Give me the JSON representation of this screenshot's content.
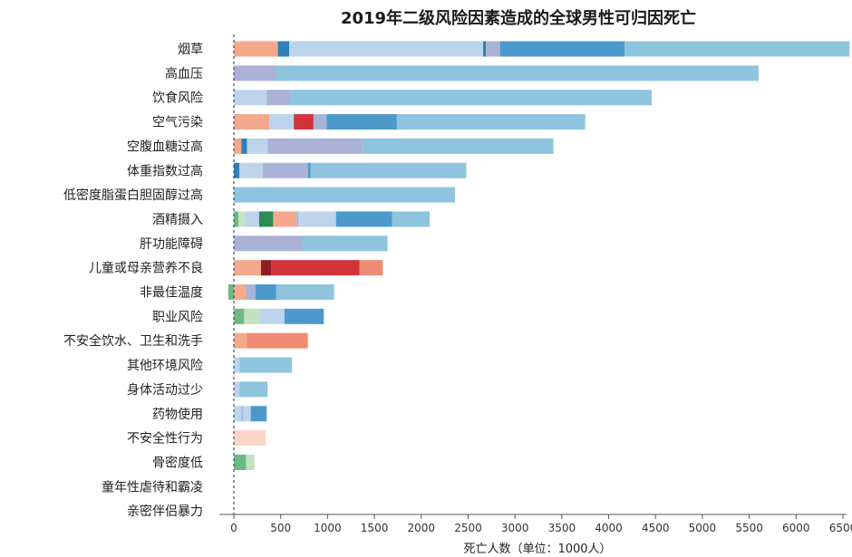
{
  "chart_data": {
    "type": "bar",
    "orientation": "horizontal",
    "stacked": true,
    "title": "2019年二级风险因素造成的全球男性可归因死亡",
    "xlabel": "死亡人数（单位：1000人）",
    "ylabel": "",
    "xlim": [
      0,
      6500
    ],
    "xticks": [
      0,
      500,
      1000,
      1500,
      2000,
      2500,
      3000,
      3500,
      4000,
      4500,
      5000,
      5500,
      6000,
      6500
    ],
    "grid": false,
    "legend": "none",
    "categories": [
      "烟草",
      "高血压",
      "饮食风险",
      "空气污染",
      "空腹血糖过高",
      "体重指数过高",
      "低密度脂蛋白胆固醇过高",
      "酒精摄入",
      "肝功能障碍",
      "儿童或母亲营养不良",
      "非最佳温度",
      "职业风险",
      "不安全饮水、卫生和洗手",
      "其他环境风险",
      "身体活动过少",
      "药物使用",
      "不安全性行为",
      "骨密度低",
      "童年性虐待和霸凌",
      "亲密伴侣暴力"
    ],
    "bars": [
      [
        {
          "v": 470,
          "c": "#f5a98c"
        },
        {
          "v": 120,
          "c": "#2f7fba"
        },
        {
          "v": 2070,
          "c": "#bcd5ec"
        },
        {
          "v": 30,
          "c": "#2f7fba"
        },
        {
          "v": 150,
          "c": "#aab2d8"
        },
        {
          "v": 1330,
          "c": "#4b9acb"
        },
        {
          "v": 2400,
          "c": "#8ec4de"
        }
      ],
      [
        {
          "v": 450,
          "c": "#aab2d8"
        },
        {
          "v": 5150,
          "c": "#8ec4de"
        }
      ],
      [
        {
          "v": 350,
          "c": "#bcd5ec"
        },
        {
          "v": 250,
          "c": "#aab2d8"
        },
        {
          "v": 3860,
          "c": "#8ec4de"
        }
      ],
      [
        {
          "v": 380,
          "c": "#f5a98c"
        },
        {
          "v": 260,
          "c": "#bcd5ec"
        },
        {
          "v": 210,
          "c": "#d1333b"
        },
        {
          "v": 140,
          "c": "#aab2d8"
        },
        {
          "v": 750,
          "c": "#4b9acb"
        },
        {
          "v": 2010,
          "c": "#8ec4de"
        }
      ],
      [
        {
          "v": 80,
          "c": "#f5a98c"
        },
        {
          "v": 60,
          "c": "#2f7fba"
        },
        {
          "v": 220,
          "c": "#bcd5ec"
        },
        {
          "v": 1010,
          "c": "#aab2d8"
        },
        {
          "v": 2040,
          "c": "#8ec4de"
        }
      ],
      [
        {
          "v": 60,
          "c": "#2f7fba"
        },
        {
          "v": 250,
          "c": "#bcd5ec"
        },
        {
          "v": 480,
          "c": "#aab2d8"
        },
        {
          "v": 30,
          "c": "#4b9acb"
        },
        {
          "v": 1660,
          "c": "#8ec4de"
        }
      ],
      [
        {
          "v": 2360,
          "c": "#8ec4de"
        }
      ],
      [
        {
          "v": 50,
          "c": "#6cb982"
        },
        {
          "v": 70,
          "c": "#c4e2c1"
        },
        {
          "v": 150,
          "c": "#bcd5ec"
        },
        {
          "v": 150,
          "c": "#2e8a57"
        },
        {
          "v": 250,
          "c": "#f5a98c"
        },
        {
          "v": 20,
          "c": "#aab2d8"
        },
        {
          "v": 400,
          "c": "#bcd5ec"
        },
        {
          "v": 600,
          "c": "#4b9acb"
        },
        {
          "v": 400,
          "c": "#8ec4de"
        }
      ],
      [
        {
          "v": 730,
          "c": "#aab2d8"
        },
        {
          "v": 910,
          "c": "#8ec4de"
        }
      ],
      [
        {
          "v": 290,
          "c": "#f5a98c"
        },
        {
          "v": 110,
          "c": "#8c1d22"
        },
        {
          "v": 940,
          "c": "#d1333b"
        },
        {
          "v": 250,
          "c": "#ef8c73"
        }
      ],
      [
        {
          "v": -60,
          "c": "#6cb982"
        },
        {
          "v": 130,
          "c": "#f5a98c"
        },
        {
          "v": 100,
          "c": "#aab2d8"
        },
        {
          "v": 220,
          "c": "#4b9acb"
        },
        {
          "v": 620,
          "c": "#8ec4de"
        }
      ],
      [
        {
          "v": 110,
          "c": "#6cb982"
        },
        {
          "v": 160,
          "c": "#c4e2c1"
        },
        {
          "v": 270,
          "c": "#bcd5ec"
        },
        {
          "v": 420,
          "c": "#4b9acb"
        }
      ],
      [
        {
          "v": 140,
          "c": "#f5a98c"
        },
        {
          "v": 650,
          "c": "#ef8c73"
        }
      ],
      [
        {
          "v": 60,
          "c": "#bcd5ec"
        },
        {
          "v": 560,
          "c": "#8ec4de"
        }
      ],
      [
        {
          "v": 60,
          "c": "#bcd5ec"
        },
        {
          "v": 300,
          "c": "#8ec4de"
        }
      ],
      [
        {
          "v": 80,
          "c": "#bcd5ec"
        },
        {
          "v": 20,
          "c": "#aab2d8"
        },
        {
          "v": 80,
          "c": "#bcd5ec"
        },
        {
          "v": 170,
          "c": "#4b9acb"
        }
      ],
      [
        {
          "v": 340,
          "c": "#fbd6c6"
        }
      ],
      [
        {
          "v": 130,
          "c": "#6cb982"
        },
        {
          "v": 90,
          "c": "#c4e2c1"
        }
      ],
      [
        {
          "v": 0,
          "c": "#bcd5ec"
        }
      ],
      [
        {
          "v": 0,
          "c": "#bcd5ec"
        }
      ]
    ]
  },
  "colors": {
    "axis": "#555555",
    "zero_line": "#2f4f6f",
    "background": "#ffffff"
  }
}
